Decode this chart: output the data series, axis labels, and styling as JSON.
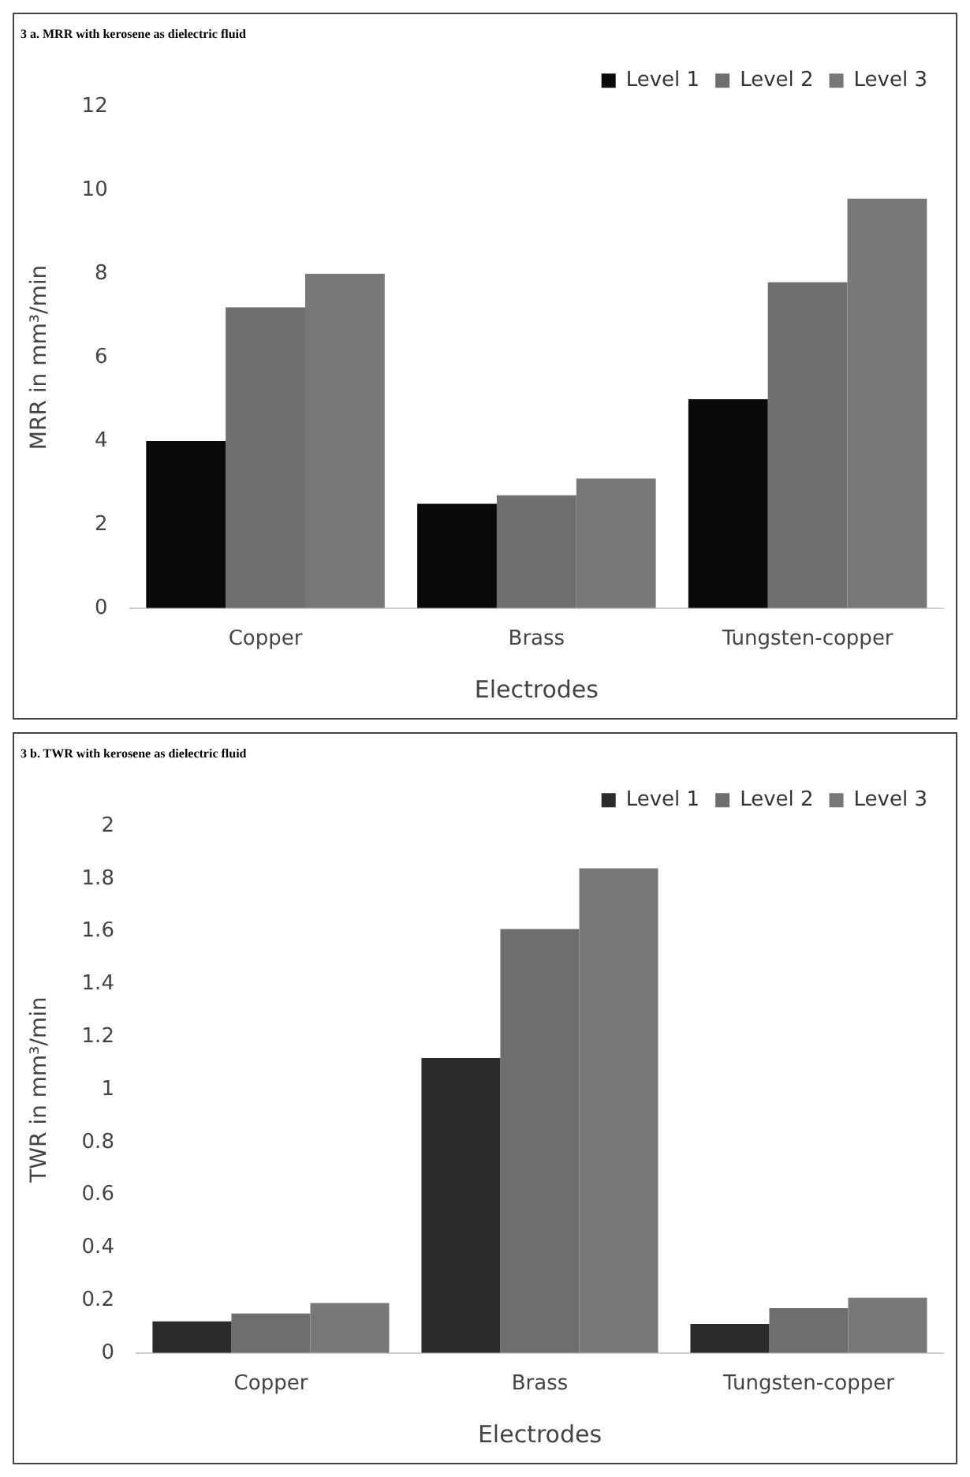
{
  "chart_data": [
    {
      "type": "bar",
      "title": "3 a. MRR with kerosene as dielectric fluid",
      "xlabel": "Electrodes",
      "ylabel": "MRR in mm³/min",
      "categories": [
        "Copper",
        "Brass",
        "Tungsten-copper"
      ],
      "series": [
        {
          "name": "Level 1",
          "color": "#0a0a0a",
          "values": [
            4.0,
            2.5,
            5.0
          ]
        },
        {
          "name": "Level 2",
          "color": "#6e6e6e",
          "values": [
            7.2,
            2.7,
            7.8
          ]
        },
        {
          "name": "Level 3",
          "color": "#787878",
          "values": [
            8.0,
            3.1,
            9.8
          ]
        }
      ],
      "ylim": [
        0,
        12
      ],
      "yticks": [
        0,
        2,
        4,
        6,
        8,
        10,
        12
      ],
      "grid": false,
      "legend": "top right"
    },
    {
      "type": "bar",
      "title": "3 b. TWR with kerosene as dielectric fluid",
      "xlabel": "Electrodes",
      "ylabel": "TWR in mm³/min",
      "categories": [
        "Copper",
        "Brass",
        "Tungsten-copper"
      ],
      "series": [
        {
          "name": "Level 1",
          "color": "#2b2b2b",
          "values": [
            0.12,
            1.12,
            0.11
          ]
        },
        {
          "name": "Level 2",
          "color": "#6e6e6e",
          "values": [
            0.15,
            1.61,
            0.17
          ]
        },
        {
          "name": "Level 3",
          "color": "#787878",
          "values": [
            0.19,
            1.84,
            0.21
          ]
        }
      ],
      "ylim": [
        0,
        2
      ],
      "yticks": [
        0,
        0.2,
        0.4,
        0.6,
        0.8,
        1,
        1.2,
        1.4,
        1.6,
        1.8,
        2
      ],
      "grid": false,
      "legend": "top right"
    }
  ]
}
